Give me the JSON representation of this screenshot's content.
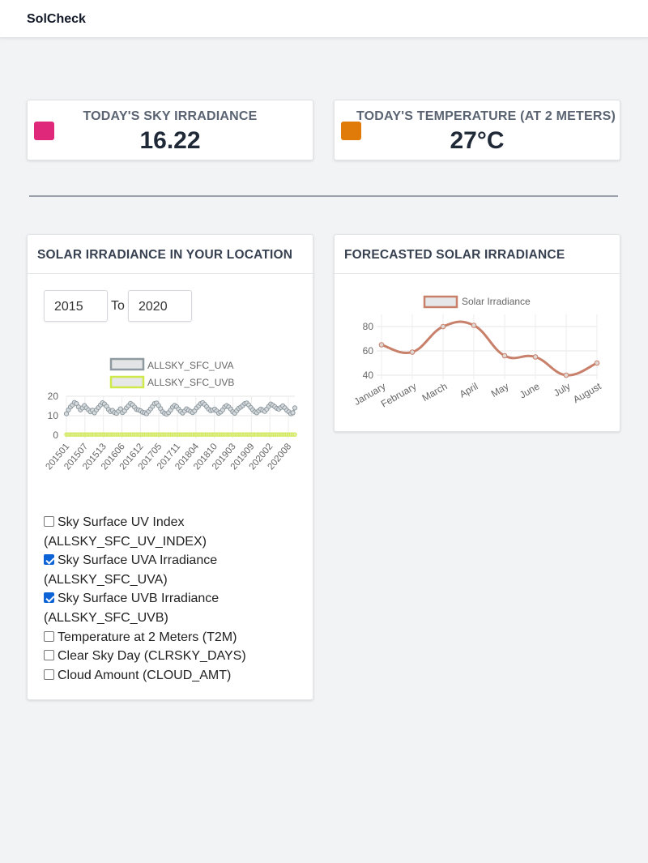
{
  "app": {
    "title": "SolCheck"
  },
  "stats": [
    {
      "title": "TODAY'S SKY IRRADIANCE",
      "value": "16.22",
      "color": "#e0287a"
    },
    {
      "title": "TODAY'S TEMPERATURE (AT 2 METERS)",
      "value": "27°C",
      "color": "#e07b0a"
    }
  ],
  "location_panel": {
    "title": "SOLAR IRRADIANCE IN YOUR LOCATION",
    "from_year": "2015",
    "to_label": "To",
    "to_year": "2020",
    "options": [
      {
        "label": "Sky Surface UV Index",
        "code": "(ALLSKY_SFC_UV_INDEX)",
        "checked": false
      },
      {
        "label": "Sky Surface UVA Irradiance",
        "code": "(ALLSKY_SFC_UVA)",
        "checked": true
      },
      {
        "label": "Sky Surface UVB Irradiance",
        "code": "(ALLSKY_SFC_UVB)",
        "checked": true
      },
      {
        "label": "Temperature at 2 Meters (T2M)",
        "code": "",
        "checked": false
      },
      {
        "label": "Clear Sky Day (CLRSKY_DAYS)",
        "code": "",
        "checked": false
      },
      {
        "label": "Cloud Amount (CLOUD_AMT)",
        "code": "",
        "checked": false
      }
    ]
  },
  "forecast_panel": {
    "title": "FORECASTED SOLAR IRRADIANCE"
  },
  "chart_data": [
    {
      "type": "line",
      "title": "",
      "ylim": [
        0,
        20
      ],
      "yticks": [
        0,
        10,
        20
      ],
      "xtick_labels": [
        "201501",
        "201507",
        "201513",
        "201606",
        "201612",
        "201705",
        "201711",
        "201804",
        "201810",
        "201903",
        "201909",
        "202002",
        "202008"
      ],
      "series": [
        {
          "name": "ALLSKY_SFC_UVA",
          "color": "#8e9aa0",
          "fill": "#e2e4e6",
          "values": [
            11,
            13,
            14.5,
            15.5,
            16.8,
            16.2,
            14.5,
            13,
            14,
            15.2,
            14,
            13,
            12,
            12.8,
            11.5,
            13,
            14.2,
            15.5,
            16.6,
            16,
            14.8,
            13.2,
            12.1,
            12.7,
            11.6,
            11.2,
            12.3,
            13.5,
            11.6,
            12.5,
            14,
            15.1,
            16.3,
            15.6,
            14.4,
            13.2,
            13,
            12.5,
            11.8,
            11.5,
            11,
            12.2,
            13.5,
            14.8,
            16.2,
            16.5,
            15.2,
            13.6,
            12,
            11.2,
            10.8,
            11.6,
            12.9,
            14.4,
            15.3,
            14.6,
            13.4,
            12.2,
            11.4,
            12.4,
            13.5,
            12.8,
            12.2,
            11.6,
            12.5,
            14,
            15,
            16.2,
            16.7,
            15.8,
            14.6,
            13.4,
            12.6,
            12.9,
            13.4,
            12.4,
            11.3,
            11.9,
            13,
            14.5,
            15.2,
            14.5,
            13.4,
            12,
            11.3,
            12.6,
            13.8,
            14.4,
            15.2,
            16.2,
            16.5,
            15.5,
            14.2,
            13,
            12,
            11.5,
            12.5,
            13.4,
            12.8,
            12.2,
            13.4,
            14.8,
            16,
            15.4,
            14.6,
            13.8,
            13.4,
            14.2,
            15,
            14,
            12.8,
            12,
            11,
            11.5,
            14
          ]
        },
        {
          "name": "ALLSKY_SFC_UVB",
          "color": "#cfe84a",
          "fill": "#e6e7e8",
          "constant_value": 0.35
        }
      ]
    },
    {
      "type": "line",
      "title": "",
      "categories": [
        "January",
        "February",
        "March",
        "April",
        "May",
        "June",
        "July",
        "August"
      ],
      "ylim": [
        40,
        80
      ],
      "yticks": [
        40,
        60,
        80
      ],
      "series": [
        {
          "name": "Solar Irradiance",
          "color": "#c8806a",
          "fill": "#e6e7e8",
          "values": [
            65,
            59,
            80,
            81,
            56,
            55,
            40,
            50
          ]
        }
      ]
    }
  ]
}
